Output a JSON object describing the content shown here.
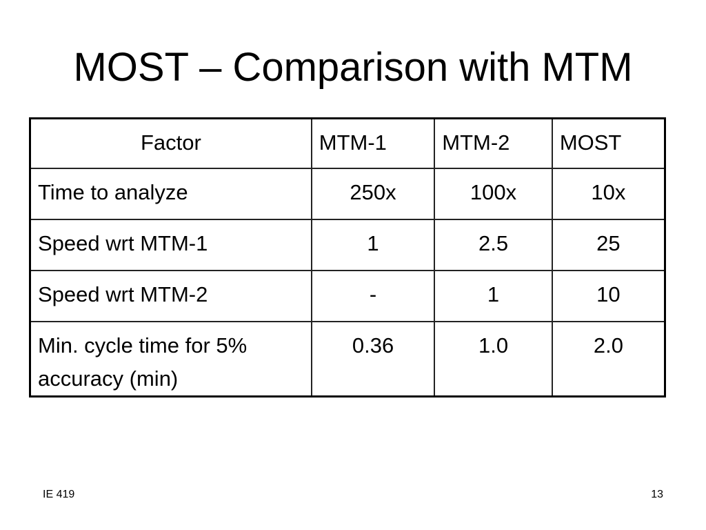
{
  "title": "MOST – Comparison with MTM",
  "table": {
    "header": [
      "Factor",
      "MTM-1",
      "MTM-2",
      "MOST"
    ],
    "rows": [
      [
        "Time to analyze",
        "250x",
        "100x",
        "10x"
      ],
      [
        "Speed wrt MTM-1",
        "1",
        "2.5",
        "25"
      ],
      [
        "Speed wrt MTM-2",
        "-",
        "1",
        "10"
      ],
      [
        "Min. cycle time for 5% accuracy (min)",
        "0.36",
        "1.0",
        "2.0"
      ]
    ]
  },
  "footer": {
    "left": "IE 419",
    "page": "13"
  }
}
